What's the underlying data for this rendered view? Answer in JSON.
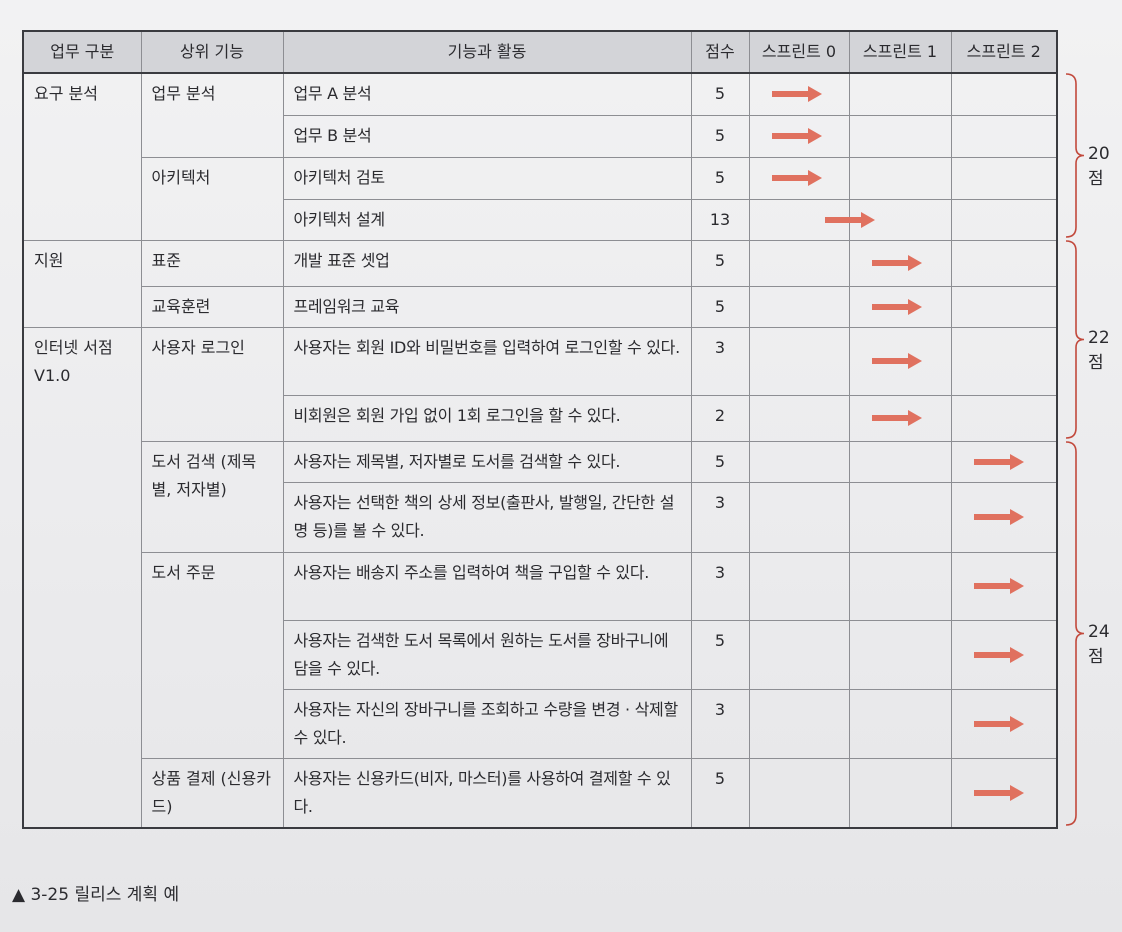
{
  "header": {
    "area": "업무 구분",
    "feature": "상위 기능",
    "activity": "기능과 활동",
    "points": "점수",
    "sprints": [
      "스프린트 0",
      "스프린트 1",
      "스프린트 2"
    ]
  },
  "groups": [
    {
      "area": "요구 분석",
      "features": [
        {
          "name": "업무 분석",
          "rows": [
            {
              "activity": "업무 A 분석",
              "points": "5",
              "sprint": 0
            },
            {
              "activity": "업무 B 분석",
              "points": "5",
              "sprint": 0
            }
          ]
        },
        {
          "name": "아키텍처",
          "rows": [
            {
              "activity": "아키텍처 검토",
              "points": "5",
              "sprint": 0
            },
            {
              "activity": "아키텍처 설계",
              "points": "13",
              "sprint": 0.5
            }
          ]
        }
      ]
    },
    {
      "area": "지원",
      "features": [
        {
          "name": "표준",
          "rows": [
            {
              "activity": "개발 표준 셋업",
              "points": "5",
              "sprint": 1
            }
          ]
        },
        {
          "name": "교육훈련",
          "rows": [
            {
              "activity": "프레임워크 교육",
              "points": "5",
              "sprint": 1
            }
          ]
        }
      ]
    },
    {
      "area": "인터넷 서점 V1.0",
      "features": [
        {
          "name": "사용자 로그인",
          "rows": [
            {
              "activity": "사용자는 회원 ID와 비밀번호를 입력하여 로그인할 수 있다.",
              "points": "3",
              "sprint": 1
            },
            {
              "activity": "비회원은 회원 가입 없이 1회 로그인을 할 수 있다.",
              "points": "2",
              "sprint": 1
            }
          ]
        },
        {
          "name": "도서 검색 (제목별, 저자별)",
          "rows": [
            {
              "activity": "사용자는 제목별, 저자별로 도서를 검색할 수 있다.",
              "points": "5",
              "sprint": 2
            },
            {
              "activity": "사용자는 선택한 책의 상세 정보(출판사, 발행일, 간단한 설명 등)를 볼 수 있다.",
              "points": "3",
              "sprint": 2
            }
          ]
        },
        {
          "name": "도서 주문",
          "rows": [
            {
              "activity": "사용자는 배송지 주소를 입력하여 책을 구입할 수 있다.",
              "points": "3",
              "sprint": 2
            },
            {
              "activity": "사용자는 검색한 도서 목록에서 원하는 도서를 장바구니에 담을 수 있다.",
              "points": "5",
              "sprint": 2
            },
            {
              "activity": "사용자는 자신의 장바구니를 조회하고 수량을 변경 · 삭제할 수 있다.",
              "points": "3",
              "sprint": 2
            }
          ]
        },
        {
          "name": "상품 결제 (신용카드)",
          "rows": [
            {
              "activity": "사용자는 신용카드(비자, 마스터)를 사용하여 결제할 수 있다.",
              "points": "5",
              "sprint": 2
            }
          ]
        }
      ]
    }
  ],
  "braces": [
    "20점",
    "22점",
    "24점"
  ],
  "caption": "▲ 3-25 릴리스 계획 예",
  "colors": {
    "arrow": "#e0715f",
    "header_bg": "#d3d4d8",
    "border": "#3a3b40"
  }
}
